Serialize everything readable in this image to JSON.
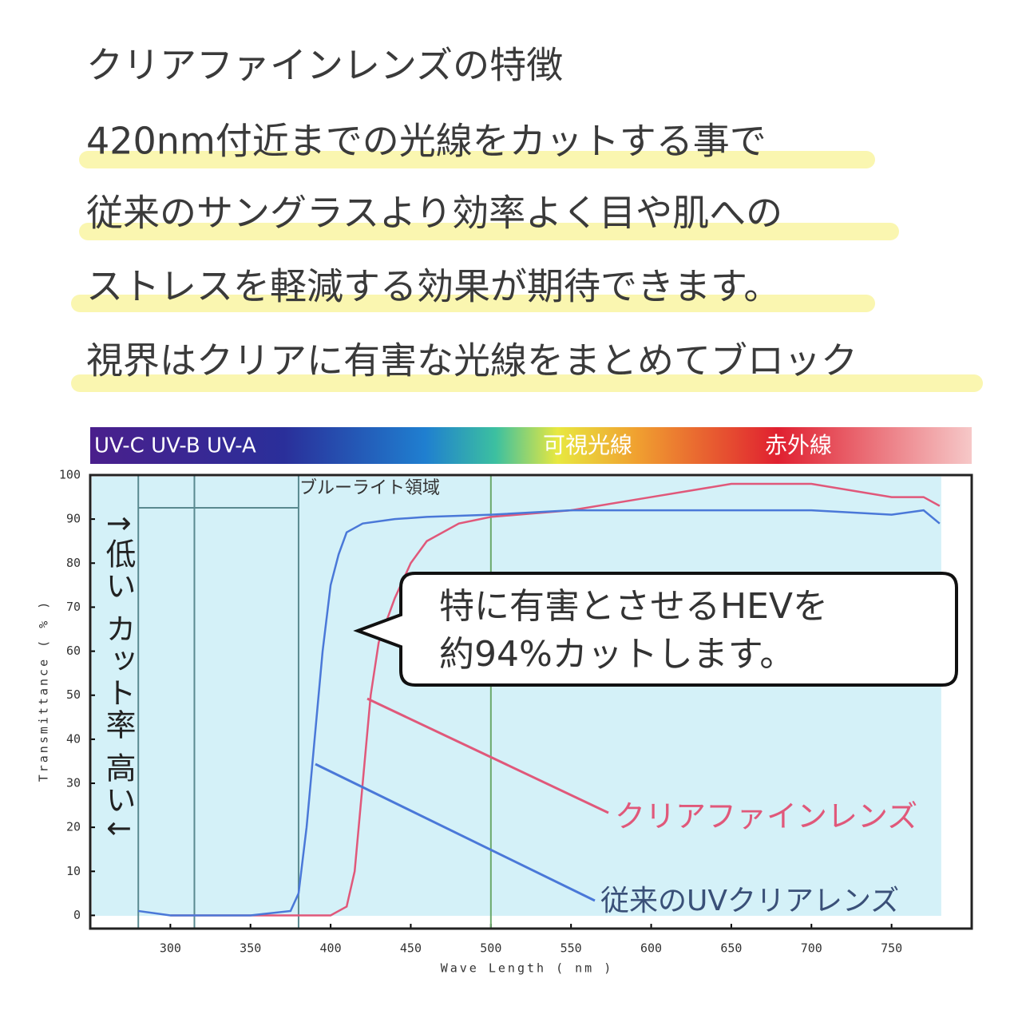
{
  "header": {
    "title": "クリアファインレンズの特徴",
    "lines": [
      "420nm付近までの光線をカットする事で",
      "従来のサングラスより効率よく目や肌への",
      "ストレスを軽減する効果が期待できます。",
      "視界はクリアに有害な光線をまとめてブロック"
    ]
  },
  "chart_data": {
    "type": "line",
    "band_labels": [
      "UV-C UV-B UV-A",
      "可視光線",
      "赤外線"
    ],
    "region_label": "ブルーライト領域",
    "x_label": "Wave Length ( nm )",
    "y_label": "Transmittance ( % )",
    "side_label": "↑低い カット率 高い↓",
    "callout": [
      "特に有害とさせるHEVを",
      "約94%カットします。"
    ],
    "xlim": [
      250,
      800
    ],
    "ylim": [
      -3,
      100
    ],
    "xticks": [
      300,
      350,
      400,
      450,
      500,
      550,
      600,
      650,
      700,
      750
    ],
    "yticks": [
      0,
      10,
      20,
      30,
      40,
      50,
      60,
      70,
      80,
      90,
      100
    ],
    "reference_lines": [
      280,
      315,
      380,
      500
    ],
    "series": [
      {
        "name": "クリアファインレンズ",
        "color": "#e0587a",
        "x": [
          300,
          400,
          410,
          415,
          420,
          425,
          430,
          440,
          450,
          460,
          480,
          500,
          550,
          600,
          650,
          700,
          750,
          770,
          780
        ],
        "values": [
          0,
          0,
          2,
          10,
          30,
          50,
          62,
          72,
          80,
          85,
          89,
          90.5,
          92,
          95,
          98,
          98,
          95,
          95,
          93
        ]
      },
      {
        "name": "従来のUVクリアレンズ",
        "color": "#4a78d8",
        "x": [
          280,
          300,
          350,
          375,
          380,
          385,
          390,
          395,
          400,
          405,
          410,
          420,
          440,
          460,
          500,
          550,
          600,
          650,
          700,
          750,
          770,
          780
        ],
        "values": [
          1,
          0,
          0,
          1,
          5,
          20,
          40,
          60,
          75,
          82,
          87,
          89,
          90,
          90.5,
          91,
          92,
          92,
          92,
          92,
          91,
          92,
          89
        ]
      }
    ]
  }
}
